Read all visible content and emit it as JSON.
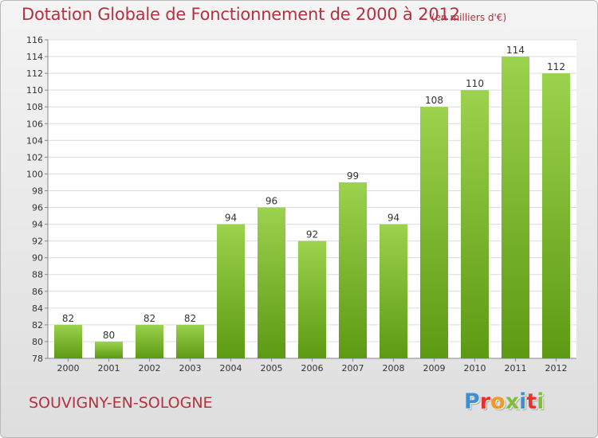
{
  "title": "Dotation Globale de Fonctionnement de 2000 à 2012",
  "subtitle": "(en milliers d'€)",
  "commune": "SOUVIGNY-EN-SOLOGNE",
  "logo": {
    "text": "Proxiti",
    "colors": [
      "#3a8fd6",
      "#e7332c",
      "#f39a1e",
      "#7fbf3a",
      "#3a8fd6",
      "#e7332c",
      "#7fbf3a"
    ]
  },
  "colors": {
    "bar_top": "#9bd24e",
    "bar_bottom": "#5d9a14",
    "title": "#b5313f"
  },
  "chart_data": {
    "type": "bar",
    "categories": [
      "2000",
      "2001",
      "2002",
      "2003",
      "2004",
      "2005",
      "2006",
      "2007",
      "2008",
      "2009",
      "2010",
      "2011",
      "2012"
    ],
    "values": [
      82,
      80,
      82,
      82,
      94,
      96,
      92,
      99,
      94,
      108,
      110,
      114,
      112
    ],
    "data_labels": [
      "82",
      "80",
      "82",
      "82",
      "94",
      "96",
      "92",
      "99",
      "94",
      "108",
      "110",
      "114",
      "112"
    ],
    "ylim": [
      78,
      116
    ],
    "yticks": [
      78,
      80,
      82,
      84,
      86,
      88,
      90,
      92,
      94,
      96,
      98,
      100,
      102,
      104,
      106,
      108,
      110,
      112,
      114,
      116
    ],
    "grid": true
  }
}
